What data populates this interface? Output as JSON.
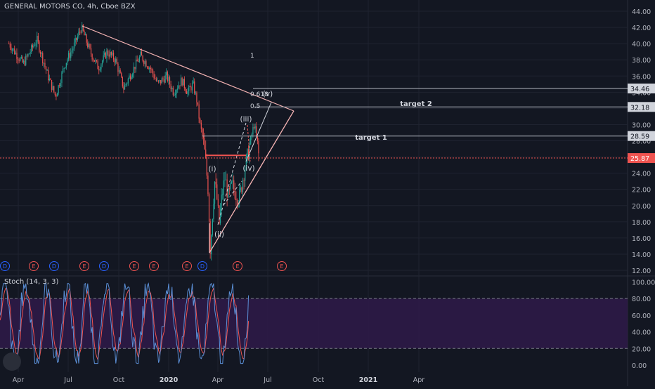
{
  "header": {
    "title": "GENERAL MOTORS CO, 4h, Cboe BZX",
    "stoch_label": "Stoch (14, 3, 3)"
  },
  "colors": {
    "background": "#131722",
    "grid": "#1f2330",
    "up_candle": "#26a69a",
    "down_candle": "#ef5350",
    "trendline": "#f3b2b2",
    "current_price_line": "#ef5350",
    "stoch_band": "#2e1a47",
    "stoch_k": "#5b8fd6",
    "stoch_d": "#ef5350",
    "dividend_marker": "#2962ff",
    "earnings_marker": "#ef5350"
  },
  "chart_data": [
    {
      "type": "candlestick",
      "title": "GENERAL MOTORS CO, 4h, Cboe BZX",
      "x_ticks": [
        "Apr",
        "Jul",
        "Oct",
        "2020",
        "Apr",
        "Jul",
        "Oct",
        "2021",
        "Apr"
      ],
      "x_tick_dates": [
        "2019-04-01",
        "2019-07-01",
        "2019-10-01",
        "2020-01-01",
        "2020-04-01",
        "2020-07-01",
        "2020-10-01",
        "2021-01-01",
        "2021-04-01"
      ],
      "y_ticks": [
        12,
        14,
        16,
        18,
        20,
        22,
        24,
        26,
        28,
        30,
        32,
        34,
        36,
        38,
        40,
        42,
        44
      ],
      "y_tick_labels": [
        "12.00",
        "14.00",
        "16.00",
        "18.00",
        "20.00",
        "22.00",
        "24.00",
        "26.00",
        "28.00",
        "30.00",
        "32.00",
        "34.00",
        "36.00",
        "38.00",
        "40.00",
        "42.00",
        "44.00"
      ],
      "ylim": [
        11.8,
        44.2
      ],
      "price_path": [
        [
          "2019-03-15",
          40.0
        ],
        [
          "2019-04-10",
          37.5
        ],
        [
          "2019-05-05",
          40.5
        ],
        [
          "2019-05-25",
          36.0
        ],
        [
          "2019-06-08",
          33.5
        ],
        [
          "2019-06-25",
          37.5
        ],
        [
          "2019-07-10",
          39.5
        ],
        [
          "2019-07-25",
          42.0
        ],
        [
          "2019-08-10",
          39.0
        ],
        [
          "2019-08-25",
          37.0
        ],
        [
          "2019-09-10",
          39.0
        ],
        [
          "2019-09-25",
          38.0
        ],
        [
          "2019-10-10",
          34.5
        ],
        [
          "2019-10-25",
          36.5
        ],
        [
          "2019-11-10",
          38.5
        ],
        [
          "2019-11-28",
          37.0
        ],
        [
          "2019-12-12",
          35.0
        ],
        [
          "2019-12-28",
          36.0
        ],
        [
          "2020-01-10",
          34.0
        ],
        [
          "2020-01-25",
          35.5
        ],
        [
          "2020-02-05",
          34.0
        ],
        [
          "2020-02-15",
          35.0
        ],
        [
          "2020-02-22",
          33.0
        ],
        [
          "2020-02-28",
          30.0
        ],
        [
          "2020-03-05",
          28.0
        ],
        [
          "2020-03-10",
          25.0
        ],
        [
          "2020-03-14",
          22.0
        ],
        [
          "2020-03-18",
          14.5
        ],
        [
          "2020-03-22",
          19.0
        ],
        [
          "2020-03-26",
          23.0
        ],
        [
          "2020-03-31",
          20.5
        ],
        [
          "2020-04-03",
          17.5
        ],
        [
          "2020-04-08",
          21.0
        ],
        [
          "2020-04-14",
          23.5
        ],
        [
          "2020-04-20",
          21.0
        ],
        [
          "2020-04-27",
          22.5
        ],
        [
          "2020-05-04",
          21.5
        ],
        [
          "2020-05-11",
          21.0
        ],
        [
          "2020-05-18",
          24.0
        ],
        [
          "2020-05-25",
          26.0
        ],
        [
          "2020-06-01",
          28.5
        ],
        [
          "2020-06-06",
          30.0
        ],
        [
          "2020-06-09",
          29.0
        ],
        [
          "2020-06-12",
          27.5
        ],
        [
          "2020-06-15",
          25.87
        ]
      ],
      "markers": {
        "current_price": 25.87,
        "levels": [
          28.59,
          32.18,
          34.46
        ],
        "level_labels": [
          "28.59",
          "32.18",
          "34.46",
          "25.87"
        ]
      },
      "annotations": {
        "wave_labels": [
          "(i)",
          "(ii)",
          "(iii)",
          "(iv)",
          "(v)"
        ],
        "fib_labels": [
          "1",
          "0.618",
          "0.5"
        ],
        "target_labels": [
          "target 1",
          "target 2"
        ]
      },
      "events": [
        "D",
        "E",
        "D",
        "E",
        "D",
        "E",
        "E",
        "E",
        "D",
        "E",
        "E"
      ]
    },
    {
      "type": "line",
      "title": "Stoch (14, 3, 3)",
      "y_ticks": [
        0,
        20,
        40,
        60,
        80,
        100
      ],
      "y_tick_labels": [
        "0.00",
        "20.00",
        "40.00",
        "60.00",
        "80.00",
        "100.00"
      ],
      "ylim": [
        -5,
        105
      ],
      "band": [
        20,
        80
      ]
    }
  ]
}
